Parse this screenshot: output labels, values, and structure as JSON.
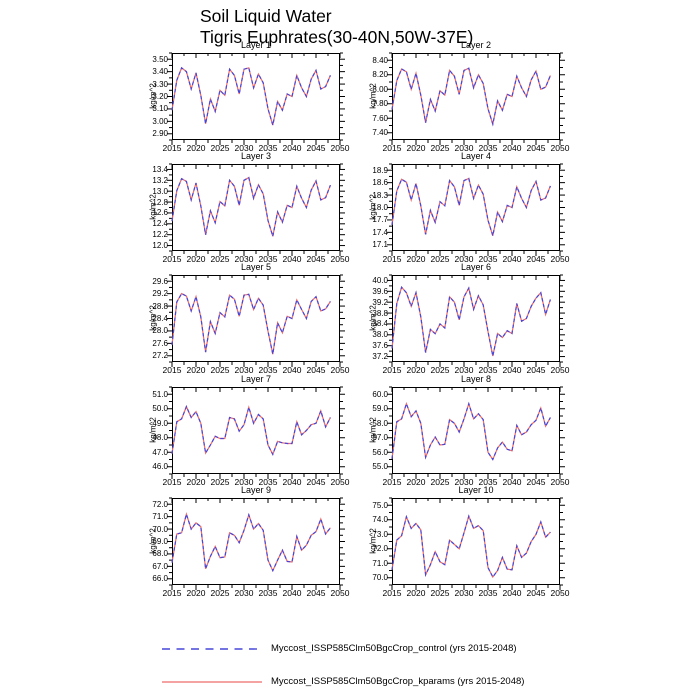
{
  "title": {
    "line1": "Soil Liquid Water",
    "line2": "Tigris Euphrates(30-40N,50W-37E)"
  },
  "colors": {
    "control": "#4646d8",
    "kparams": "#ee6a6a"
  },
  "axis": {
    "ylabel": "kg/m^2",
    "x_ticks": [
      2015,
      2020,
      2025,
      2030,
      2035,
      2040,
      2045,
      2050
    ],
    "xlim": [
      2015,
      2050
    ],
    "years_start": 2015,
    "years_end": 2048
  },
  "legend": {
    "entries": [
      {
        "name": "control",
        "style": "dashed",
        "label": "Myccost_ISSP585Clm50BgcCrop_control (yrs 2015-2048)"
      },
      {
        "name": "kparams",
        "style": "solid",
        "label": "Myccost_ISSP585Clm50BgcCrop_kparams (yrs 2015-2048)"
      }
    ]
  },
  "series_note": "Both series (control: dashed, kparams: solid) visually overlap in every panel; shared yearly values 2015-2048 are given per layer.",
  "chart_data": [
    {
      "type": "line",
      "title": "Layer 1",
      "ylabel": "kg/m^2",
      "ytick_step": 0.1,
      "yticks": [
        "2.90",
        "3.00",
        "3.10",
        "3.20",
        "3.30",
        "3.40",
        "3.50"
      ],
      "values": [
        3.09,
        3.33,
        3.43,
        3.4,
        3.26,
        3.39,
        3.21,
        2.98,
        3.18,
        3.08,
        3.25,
        3.21,
        3.42,
        3.37,
        3.22,
        3.42,
        3.43,
        3.27,
        3.38,
        3.31,
        3.1,
        2.97,
        3.16,
        3.09,
        3.22,
        3.2,
        3.37,
        3.27,
        3.2,
        3.34,
        3.41,
        3.26,
        3.28,
        3.37
      ]
    },
    {
      "type": "line",
      "title": "Layer 2",
      "ylabel": "kg/m^2",
      "ytick_step": 0.2,
      "yticks": [
        "7.40",
        "7.60",
        "7.80",
        "8.00",
        "8.20",
        "8.40"
      ],
      "values": [
        7.72,
        8.12,
        8.28,
        8.24,
        8.0,
        8.22,
        7.92,
        7.54,
        7.86,
        7.7,
        7.98,
        7.92,
        8.26,
        8.18,
        7.93,
        8.26,
        8.29,
        8.02,
        8.2,
        8.08,
        7.73,
        7.52,
        7.84,
        7.71,
        7.93,
        7.9,
        8.18,
        8.02,
        7.9,
        8.13,
        8.25,
        8.0,
        8.03,
        8.19
      ]
    },
    {
      "type": "line",
      "title": "Layer 3",
      "ylabel": "kg/m^2",
      "ytick_step": 0.2,
      "yticks": [
        "12.0",
        "12.2",
        "12.4",
        "12.6",
        "12.8",
        "13.0",
        "13.2",
        "13.4"
      ],
      "values": [
        12.45,
        13.01,
        13.23,
        13.18,
        12.84,
        13.15,
        12.73,
        12.2,
        12.64,
        12.42,
        12.81,
        12.73,
        13.2,
        13.09,
        12.74,
        13.2,
        13.25,
        12.87,
        13.12,
        12.95,
        12.46,
        12.17,
        12.62,
        12.43,
        12.74,
        12.7,
        13.09,
        12.87,
        12.7,
        13.02,
        13.19,
        12.84,
        12.88,
        13.11
      ]
    },
    {
      "type": "line",
      "title": "Layer 4",
      "ylabel": "kg/m^2",
      "ytick_step": 0.3,
      "yticks": [
        "17.1",
        "17.4",
        "17.7",
        "18.0",
        "18.3",
        "18.6",
        "18.9"
      ],
      "values": [
        17.58,
        18.4,
        18.68,
        18.61,
        18.18,
        18.58,
        18.04,
        17.35,
        17.93,
        17.64,
        18.14,
        18.04,
        18.65,
        18.5,
        18.05,
        18.65,
        18.7,
        18.22,
        18.54,
        18.32,
        17.69,
        17.32,
        17.89,
        17.66,
        18.05,
        18.0,
        18.5,
        18.22,
        18.0,
        18.41,
        18.63,
        18.18,
        18.23,
        18.52
      ]
    },
    {
      "type": "line",
      "title": "Layer 5",
      "ylabel": "kg/m^2",
      "ytick_step": 0.4,
      "yticks": [
        "27.2",
        "27.6",
        "28.0",
        "28.4",
        "28.8",
        "29.2",
        "29.6"
      ],
      "values": [
        27.55,
        28.93,
        29.2,
        29.12,
        28.64,
        29.1,
        28.45,
        27.32,
        28.3,
        27.92,
        28.59,
        28.45,
        29.15,
        29.02,
        28.47,
        29.15,
        29.18,
        28.69,
        29.05,
        28.83,
        27.99,
        27.25,
        28.26,
        27.94,
        28.47,
        28.4,
        29.0,
        28.69,
        28.4,
        28.95,
        29.1,
        28.64,
        28.71,
        28.95
      ]
    },
    {
      "type": "line",
      "title": "Layer 6",
      "ylabel": "kg/m^2",
      "ytick_step": 0.4,
      "yticks": [
        "37.2",
        "37.6",
        "38.0",
        "38.4",
        "38.8",
        "39.2",
        "39.6",
        "40.0"
      ],
      "values": [
        37.5,
        39.15,
        39.75,
        39.55,
        39.05,
        39.55,
        38.66,
        37.35,
        38.2,
        38.04,
        38.4,
        38.25,
        39.4,
        39.2,
        38.55,
        39.4,
        39.72,
        38.94,
        39.44,
        39.1,
        38.12,
        37.22,
        38.05,
        37.9,
        38.15,
        38.05,
        39.15,
        38.5,
        38.6,
        39.05,
        39.35,
        39.55,
        38.75,
        39.3
      ]
    },
    {
      "type": "line",
      "title": "Layer 7",
      "ylabel": "kg/m^2",
      "ytick_step": 1.0,
      "yticks": [
        "46.0",
        "47.0",
        "48.0",
        "49.0",
        "50.0",
        "51.0"
      ],
      "values": [
        46.9,
        49.1,
        49.3,
        50.15,
        49.4,
        49.8,
        49.0,
        46.95,
        47.5,
        48.1,
        47.95,
        47.95,
        49.4,
        49.3,
        48.45,
        48.9,
        50.1,
        49.0,
        49.6,
        49.3,
        47.5,
        46.85,
        47.75,
        47.65,
        47.6,
        47.6,
        49.1,
        48.2,
        48.5,
        48.9,
        49.0,
        49.85,
        48.75,
        49.4
      ]
    },
    {
      "type": "line",
      "title": "Layer 8",
      "ylabel": "kg/m^2",
      "ytick_step": 1.0,
      "yticks": [
        "55.0",
        "56.0",
        "57.0",
        "58.0",
        "59.0",
        "60.0"
      ],
      "values": [
        55.55,
        58.1,
        58.3,
        59.35,
        58.45,
        58.85,
        58.0,
        55.65,
        56.5,
        57.05,
        56.5,
        56.55,
        58.25,
        58.0,
        57.4,
        58.3,
        59.35,
        58.3,
        58.65,
        58.25,
        56.0,
        55.5,
        56.3,
        56.7,
        56.2,
        56.1,
        57.85,
        57.2,
        57.4,
        57.9,
        58.2,
        59.05,
        57.8,
        58.4
      ]
    },
    {
      "type": "line",
      "title": "Layer 9",
      "ylabel": "kg/m^2",
      "ytick_step": 1.0,
      "yticks": [
        "66.0",
        "67.0",
        "68.0",
        "69.0",
        "70.0",
        "71.0",
        "72.0"
      ],
      "values": [
        67.3,
        69.6,
        69.7,
        71.2,
        70.0,
        70.5,
        70.2,
        66.8,
        67.8,
        68.6,
        67.7,
        67.75,
        69.7,
        69.5,
        68.9,
        69.9,
        71.15,
        70.0,
        70.45,
        69.9,
        67.5,
        66.65,
        67.5,
        68.3,
        67.4,
        67.35,
        69.4,
        68.3,
        68.7,
        69.5,
        69.8,
        70.8,
        69.6,
        70.1
      ]
    },
    {
      "type": "line",
      "title": "Layer 10",
      "ylabel": "kg/m^2",
      "ytick_step": 1.0,
      "yticks": [
        "70.0",
        "71.0",
        "72.0",
        "73.0",
        "74.0",
        "75.0"
      ],
      "values": [
        70.55,
        72.6,
        72.9,
        74.2,
        73.4,
        73.75,
        73.3,
        70.2,
        70.9,
        71.8,
        71.1,
        70.9,
        72.6,
        72.3,
        72.0,
        73.1,
        74.25,
        73.4,
        73.6,
        73.25,
        70.7,
        70.05,
        70.5,
        71.4,
        70.6,
        70.55,
        72.2,
        71.4,
        71.7,
        72.5,
        73.0,
        73.85,
        72.8,
        73.15
      ]
    }
  ]
}
